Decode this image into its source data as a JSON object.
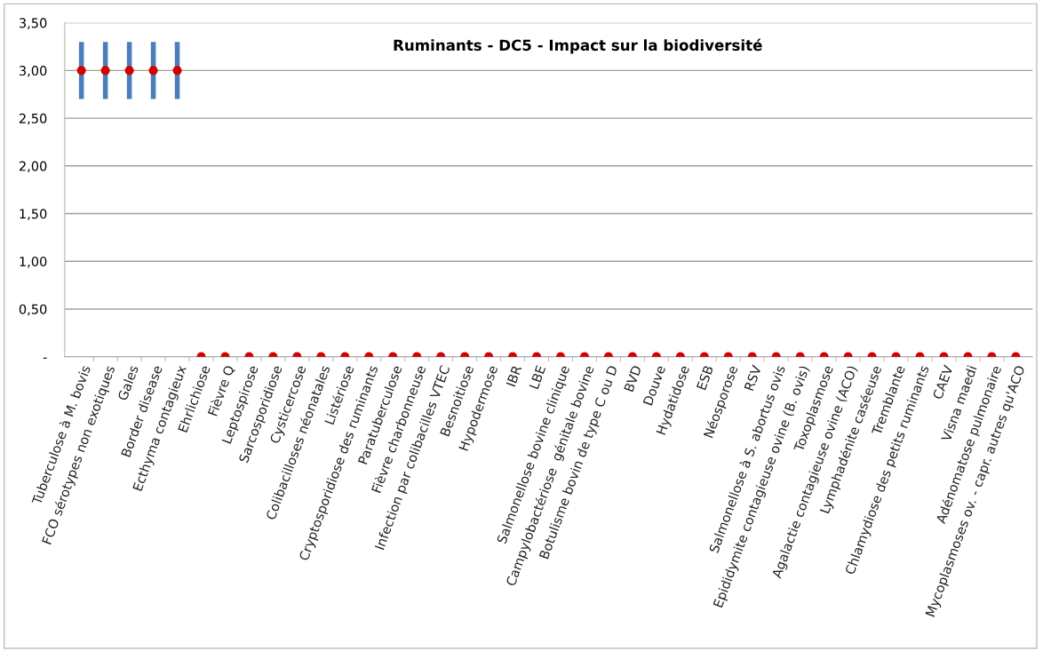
{
  "chart_data": {
    "type": "scatter",
    "title": "Ruminants - DC5 - Impact sur la biodiversité",
    "categories": [
      "Tuberculose à M. bovis",
      "FCO sérotypes non exotiques",
      "Gales",
      "Border disease",
      "Ecthyma contagieux",
      "Ehrlichiose",
      "Fièvre Q",
      "Leptospirose",
      "Sarcosporidiose",
      "Cysticercose",
      "Colibacilloses néonatales",
      "Listériose",
      "Cryptosporidiose des ruminants",
      "Paratuberculose",
      "Fièvre charbonneuse",
      "Infection par colibacilles VTEC",
      "Besnoitiose",
      "Hypodermose",
      "IBR",
      "LBE",
      "Salmonellose bovine clinique",
      "Campylobactériose  génitale bovine",
      "Botulisme bovin de type C ou D",
      "BVD",
      "Douve",
      "Hydatidose",
      "ESB",
      "Néosporose",
      "RSV",
      "Salmonellose à S. abortus ovis",
      "Epididymite contagieuse ovine (B. ovis)",
      "Toxoplasmose",
      "Agalactie contagieuse ovine (ACO)",
      "Lymphadénite caséeuse",
      "Tremblante",
      "Chlamydiose des petits ruminants",
      "CAEV",
      "Visna maedi",
      "Adénomatose pulmonaire",
      "Mycoplasmoses ov. - capr. autres qu'ACO"
    ],
    "series": [
      {
        "color": "#d40000",
        "values": [
          3,
          3,
          3,
          3,
          3,
          0,
          0,
          0,
          0,
          0,
          0,
          0,
          0,
          0,
          0,
          0,
          0,
          0,
          0,
          0,
          0,
          0,
          0,
          0,
          0,
          0,
          0,
          0,
          0,
          0,
          0,
          0,
          0,
          0,
          0,
          0,
          0,
          0,
          0,
          0
        ],
        "errors": [
          0.3,
          0.3,
          0.3,
          0.3,
          0.3,
          null,
          null,
          null,
          null,
          null,
          null,
          null,
          null,
          null,
          null,
          null,
          null,
          null,
          null,
          null,
          null,
          null,
          null,
          null,
          null,
          null,
          null,
          null,
          null,
          null,
          null,
          null,
          null,
          null,
          null,
          null,
          null,
          null,
          null,
          null
        ]
      }
    ],
    "ylim": [
      0,
      3.5
    ],
    "yticks": [
      {
        "value": 0,
        "label": "-"
      },
      {
        "value": 0.5,
        "label": "0,50"
      },
      {
        "value": 1,
        "label": "1,00"
      },
      {
        "value": 1.5,
        "label": "1,50"
      },
      {
        "value": 2,
        "label": "2,00"
      },
      {
        "value": 2.5,
        "label": "2,50"
      },
      {
        "value": 3,
        "label": "3,00"
      },
      {
        "value": 3.5,
        "label": "3,50"
      }
    ],
    "grid": "y",
    "marker": "circle"
  }
}
